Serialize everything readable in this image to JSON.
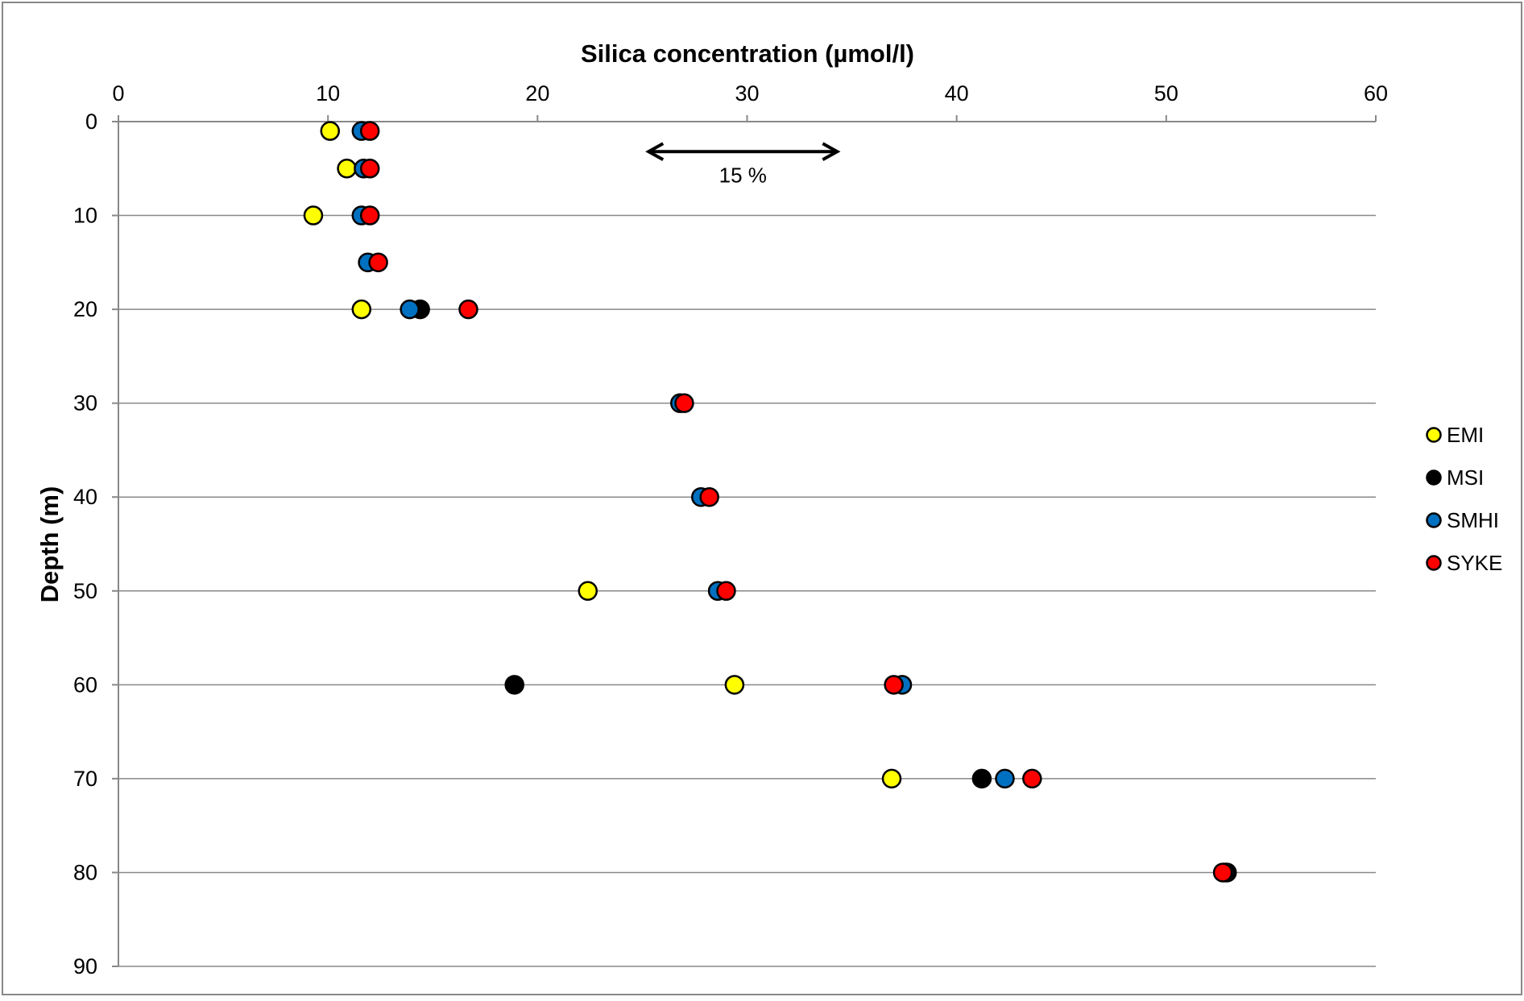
{
  "chart_data": {
    "type": "scatter",
    "title": "",
    "xlabel": "Silica concentration (µmol/l)",
    "ylabel": "Depth (m)",
    "xlim": [
      0,
      60
    ],
    "ylim": [
      0,
      90
    ],
    "y_inverted": true,
    "x_axis_position": "top",
    "x_ticks": [
      0,
      10,
      20,
      30,
      40,
      50,
      60
    ],
    "y_ticks": [
      0,
      10,
      20,
      30,
      40,
      50,
      60,
      70,
      80,
      90
    ],
    "grid": "horizontal",
    "legend_position": "right",
    "annotation": {
      "text": "15 %",
      "type": "double-arrow",
      "x_from": 25.3,
      "x_to": 34.3,
      "y": 3.2
    },
    "series": [
      {
        "name": "EMI",
        "color": "#FFFF00",
        "points": [
          {
            "x": 10.1,
            "y": 1
          },
          {
            "x": 10.9,
            "y": 5
          },
          {
            "x": 9.3,
            "y": 10
          },
          {
            "x": 11.6,
            "y": 20
          },
          {
            "x": 22.4,
            "y": 50
          },
          {
            "x": 29.4,
            "y": 60
          },
          {
            "x": 36.9,
            "y": 70
          }
        ]
      },
      {
        "name": "MSI",
        "color": "#000000",
        "points": [
          {
            "x": 14.4,
            "y": 20
          },
          {
            "x": 18.9,
            "y": 60
          },
          {
            "x": 41.2,
            "y": 70
          },
          {
            "x": 52.9,
            "y": 80
          }
        ]
      },
      {
        "name": "SMHI",
        "color": "#0070C0",
        "points": [
          {
            "x": 11.6,
            "y": 1
          },
          {
            "x": 11.7,
            "y": 5
          },
          {
            "x": 11.6,
            "y": 10
          },
          {
            "x": 11.9,
            "y": 15
          },
          {
            "x": 13.9,
            "y": 20
          },
          {
            "x": 26.8,
            "y": 30
          },
          {
            "x": 27.8,
            "y": 40
          },
          {
            "x": 28.6,
            "y": 50
          },
          {
            "x": 37.4,
            "y": 60
          },
          {
            "x": 42.3,
            "y": 70
          },
          {
            "x": 52.8,
            "y": 80
          }
        ]
      },
      {
        "name": "SYKE",
        "color": "#FF0000",
        "points": [
          {
            "x": 12.0,
            "y": 1
          },
          {
            "x": 12.0,
            "y": 5
          },
          {
            "x": 12.0,
            "y": 10
          },
          {
            "x": 12.4,
            "y": 15
          },
          {
            "x": 16.7,
            "y": 20
          },
          {
            "x": 27.0,
            "y": 30
          },
          {
            "x": 28.2,
            "y": 40
          },
          {
            "x": 29.0,
            "y": 50
          },
          {
            "x": 37.0,
            "y": 60
          },
          {
            "x": 43.6,
            "y": 70
          },
          {
            "x": 52.7,
            "y": 80
          }
        ]
      }
    ]
  }
}
